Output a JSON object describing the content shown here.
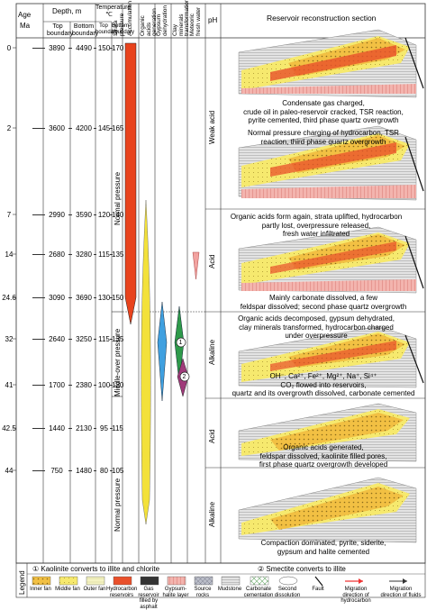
{
  "header": {
    "age": "Age",
    "age_unit": "Ma",
    "depth": "Depth, m",
    "depth_top": "Top boundary",
    "depth_bottom": "Bottom boundary",
    "temp": "Temperature ℃",
    "temp_top": "Top boundary",
    "temp_bottom": "Bottom boundary",
    "strata_pressure": "Strata pressure",
    "accumulation": "Accumulation",
    "organic_acids": "Organic acids generation",
    "gypsum": "Gypsum dehydration",
    "clay": "Clay minerals transformation",
    "meteoric": "Meteoric fresh water",
    "ph": "pH",
    "section": "Reservoir reconstruction section"
  },
  "rows": [
    {
      "age": "0",
      "d_top": "3890",
      "d_bottom": "4490",
      "t_top": "150",
      "t_bottom": "170"
    },
    {
      "age": "2",
      "d_top": "3600",
      "d_bottom": "4200",
      "t_top": "145",
      "t_bottom": "165"
    },
    {
      "age": "7",
      "d_top": "2990",
      "d_bottom": "3590",
      "t_top": "120",
      "t_bottom": "140"
    },
    {
      "age": "14",
      "d_top": "2680",
      "d_bottom": "3280",
      "t_top": "115",
      "t_bottom": "135"
    },
    {
      "age": "24.6",
      "d_top": "3090",
      "d_bottom": "3690",
      "t_top": "130",
      "t_bottom": "150"
    },
    {
      "age": "32",
      "d_top": "2640",
      "d_bottom": "3250",
      "t_top": "115",
      "t_bottom": "135"
    },
    {
      "age": "41",
      "d_top": "1700",
      "d_bottom": "2380",
      "t_top": "100",
      "t_bottom": "120"
    },
    {
      "age": "42.5",
      "d_top": "1440",
      "d_bottom": "2130",
      "t_top": "95",
      "t_bottom": "115"
    },
    {
      "age": "44",
      "d_top": "750",
      "d_bottom": "1480",
      "t_top": "80",
      "t_bottom": "105"
    }
  ],
  "pressure": {
    "upper": "Normal pressure",
    "middle": "Middle-over pressure",
    "lower": "Normal pressure"
  },
  "ph": {
    "weak_acid": "Weak acid",
    "acid1": "Acid",
    "alkaline1": "Alkaline",
    "acid2": "Acid",
    "alkaline2": "Alkaline"
  },
  "markers": {
    "one": "1",
    "two": "2"
  },
  "notes": {
    "n1": [
      "Condensate gas charged,",
      "crude oil in paleo-reservoir  cracked, TSR reaction,",
      "pyrite cemented, third phase quartz overgrowth"
    ],
    "n2": [
      "Normal pressure charging of hydrocarbon, TSR",
      "reaction, third phase quartz overgrowth"
    ],
    "n3": [
      "Organic acids form again, strata uplifted, hydrocarbon",
      "partly lost, overpressure released,",
      "fresh water infiltrated"
    ],
    "n4": [
      "Mainly carbonate dissolved, a few",
      "feldspar dissolved; second phase quartz overgrowth"
    ],
    "n5": [
      "Organic acids decomposed, gypsum dehydrated,",
      "clay minerals transformed, hydrocarbon charged",
      "under overpressure"
    ],
    "n6": [
      "OH⁻, Ca²⁺, Fe²⁺, Mg²⁺, Na⁺, Si⁴⁺",
      "CO₂ flowed into reservoirs,",
      "quartz and its overgrowth dissolved, carbonate cemented"
    ],
    "n7": [
      "Organic acids generated,",
      "feldspar dissolved, kaolinite filled pores,",
      "first phase quartz overgrowth developed"
    ],
    "n8": [
      "Compaction dominated, pyrite, siderite,",
      "gypsum and halite cemented"
    ]
  },
  "legend": {
    "title": "Legend",
    "note1": "① Kaolinite converts to illite and chlorite",
    "note2": "② Smectite converts to illite",
    "items": [
      "Inner fan",
      "Middle fan",
      "Outer fan",
      "Hydrocarbon reservoirs",
      "Gas reservoir filled by asphalt",
      "Gypsum-halite layer",
      "Source rocks",
      "Mudstone",
      "Carbonate cementation",
      "Second dissolution",
      "Fault",
      "Migration direction of hydrocarbon",
      "Migration direction of fluids"
    ]
  },
  "colors": {
    "accumulation": "#e8431d",
    "organic_acids": "#f3e13a",
    "gypsum": "#3fa0e0",
    "clay1": "#2e9a4a",
    "clay2": "#a03a7a",
    "meteoric": "#f2a3a0",
    "inner_fan": "#f1b03d",
    "middle_fan": "#f6e86a",
    "outer_fan": "#f3f2b8",
    "reservoir": "#e9502b",
    "gypsum_layer": "#f0a7a0"
  }
}
